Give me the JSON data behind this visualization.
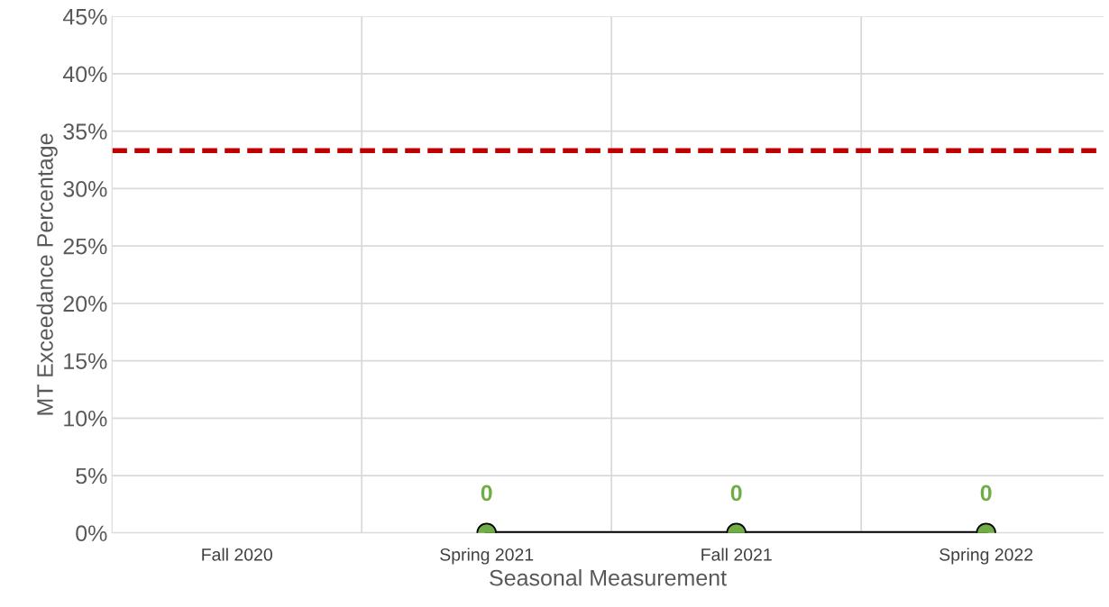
{
  "chart_data": {
    "type": "line",
    "xlabel": "Seasonal Measurement",
    "ylabel": "MT Exceedance Percentage",
    "categories": [
      "Fall 2020",
      "Spring 2021",
      "Fall 2021",
      "Spring 2022"
    ],
    "series": [
      {
        "color": "#000000",
        "colors": [
          "#70ad47",
          "#70ad47",
          "#70ad47",
          "#70ad47"
        ],
        "values": [
          null,
          0,
          0,
          0
        ]
      }
    ],
    "marker": "circle",
    "line_style": "solid",
    "data_labels": true,
    "ylim": [
      0,
      45
    ],
    "yticks": [
      {
        "value": 0,
        "label": "0%"
      },
      {
        "value": 5,
        "label": "5%"
      },
      {
        "value": 10,
        "label": "10%"
      },
      {
        "value": 15,
        "label": "15%"
      },
      {
        "value": 20,
        "label": "20%"
      },
      {
        "value": 25,
        "label": "25%"
      },
      {
        "value": 30,
        "label": "30%"
      },
      {
        "value": 35,
        "label": "35%"
      },
      {
        "value": 40,
        "label": "40%"
      },
      {
        "value": 45,
        "label": "45%"
      }
    ],
    "ref_lines": [
      {
        "axis": "y",
        "value": 33.3,
        "label": null,
        "color": "#c00000",
        "line_style": "dashed"
      }
    ],
    "grid": true
  }
}
